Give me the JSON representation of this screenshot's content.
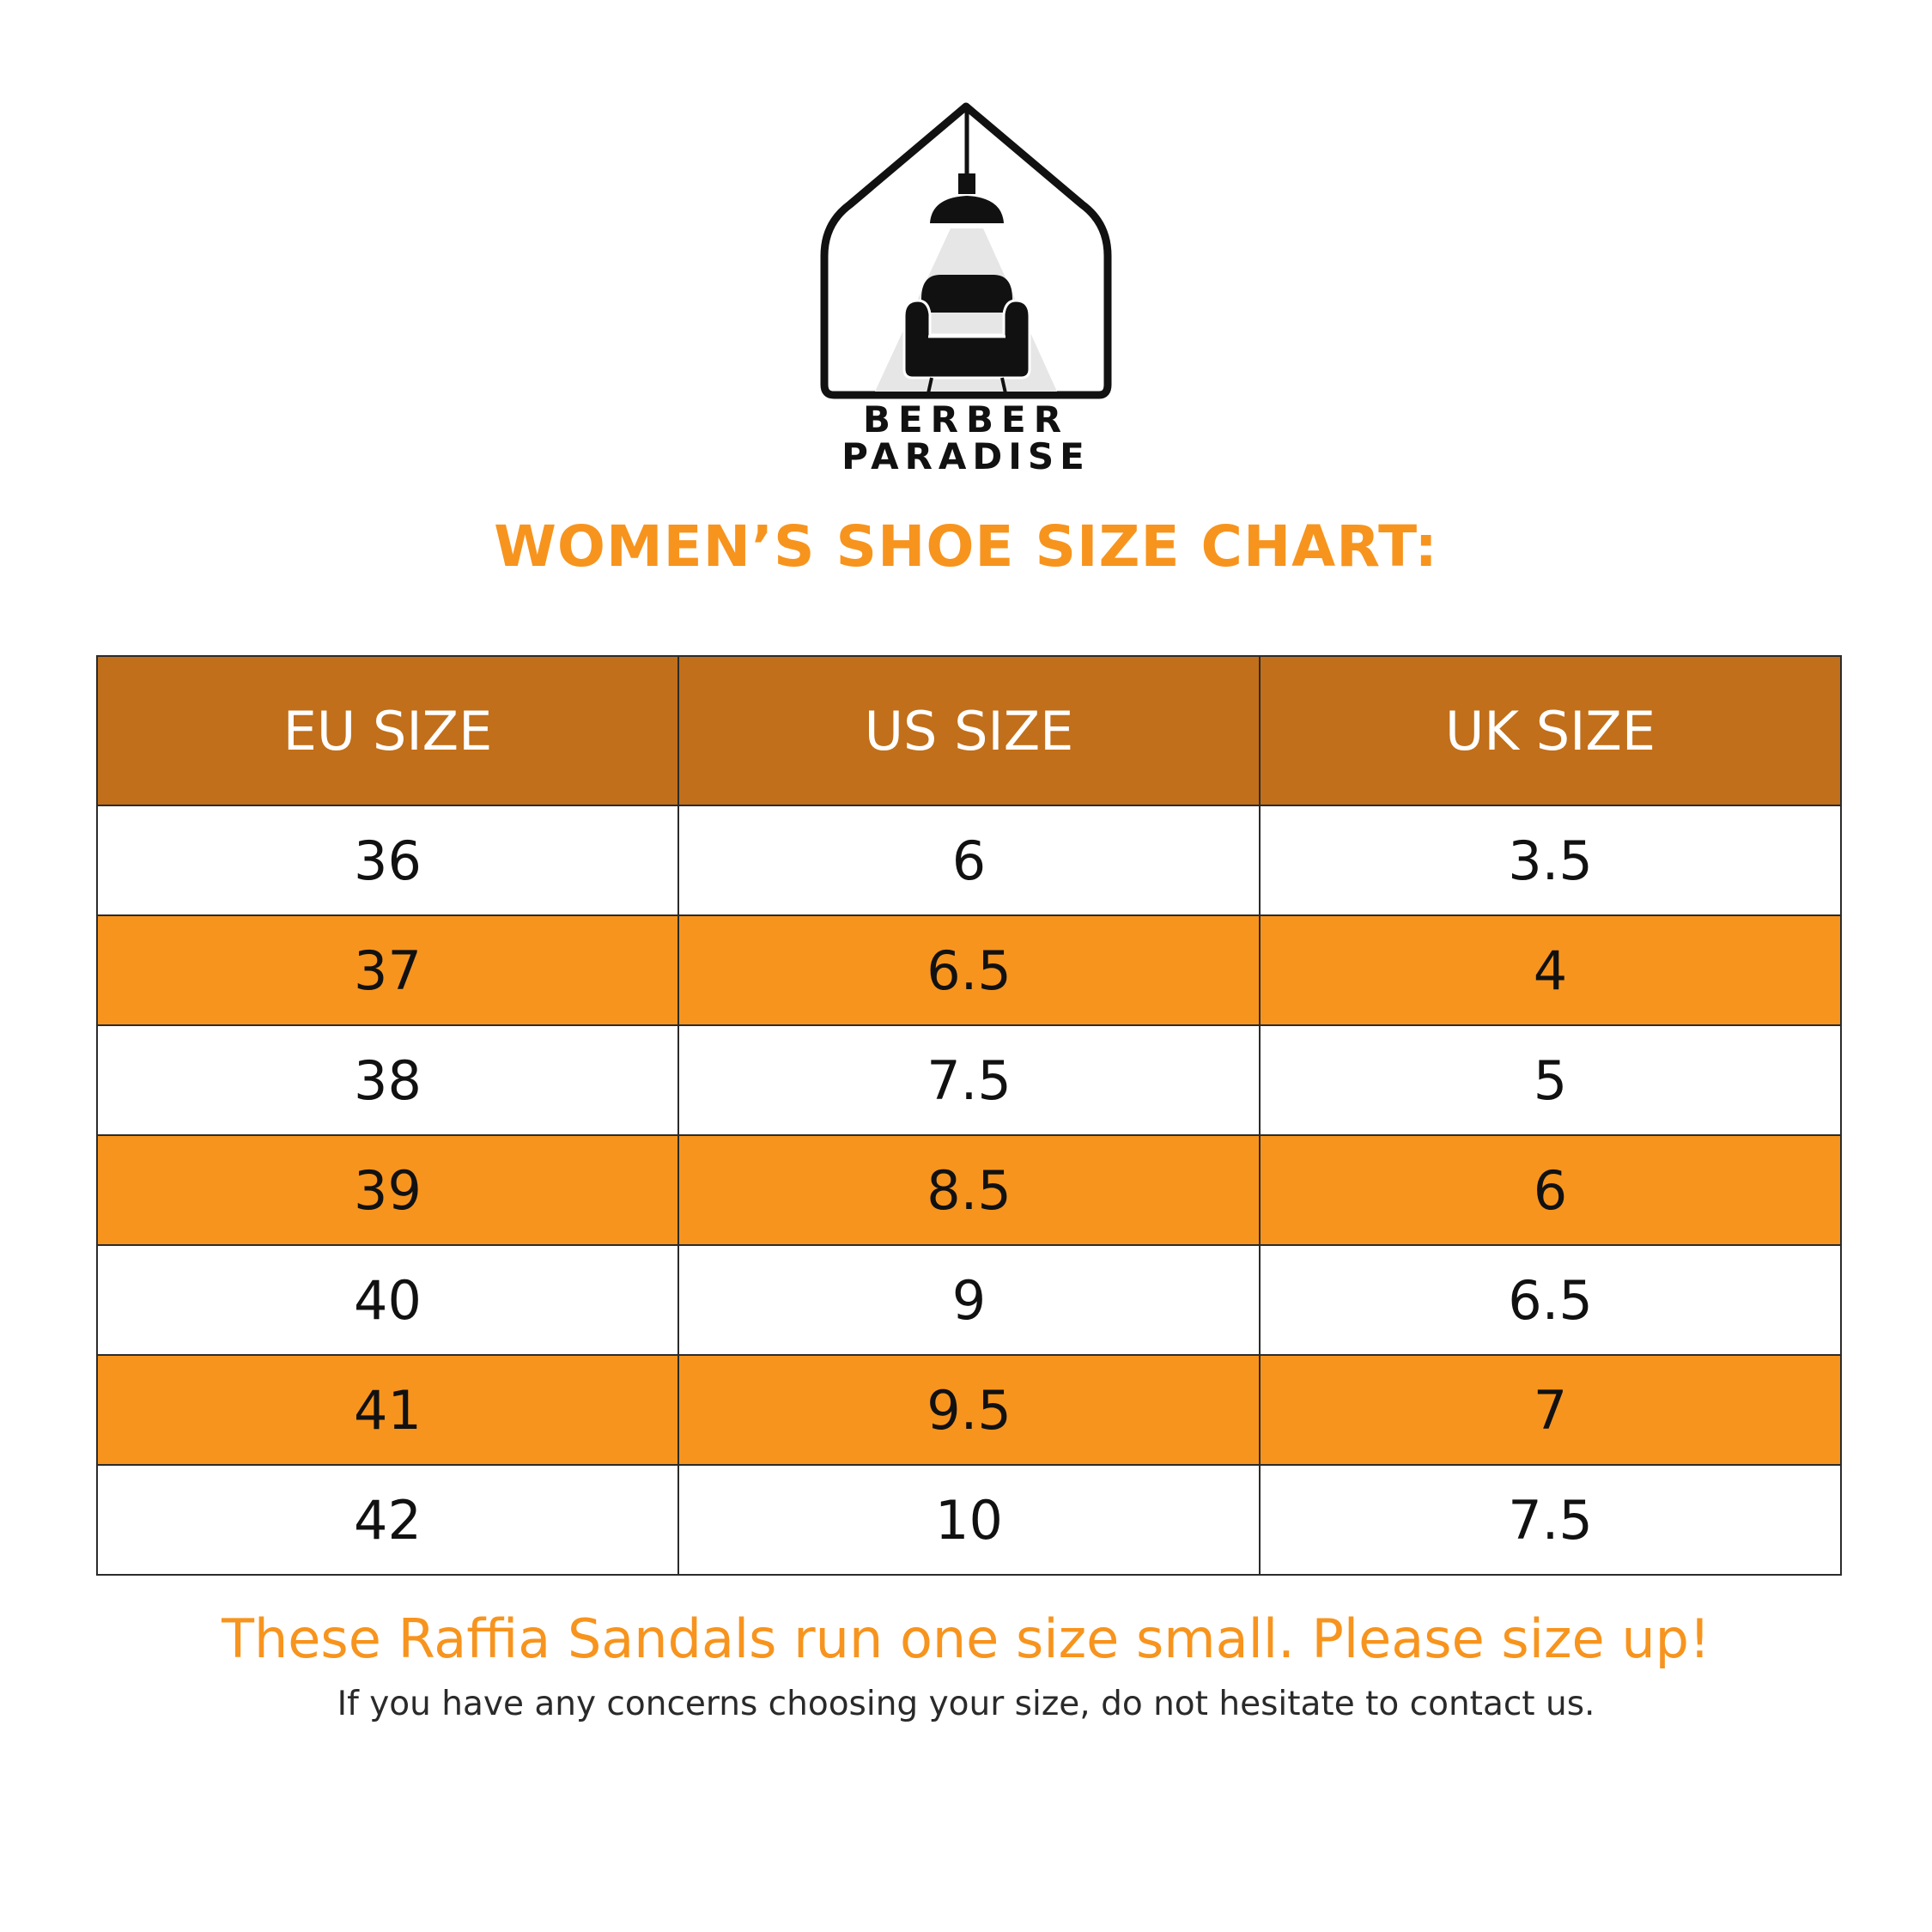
{
  "brand": {
    "line1": "BERBER",
    "line2": "PARADISE"
  },
  "title": "WOMEN’S SHOE SIZE CHART:",
  "table": {
    "headers": [
      "EU SIZE",
      "US SIZE",
      "UK SIZE"
    ],
    "rows": [
      [
        "36",
        "6",
        "3.5"
      ],
      [
        "37",
        "6.5",
        "4"
      ],
      [
        "38",
        "7.5",
        "5"
      ],
      [
        "39",
        "8.5",
        "6"
      ],
      [
        "40",
        "9",
        "6.5"
      ],
      [
        "41",
        "9.5",
        "7"
      ],
      [
        "42",
        "10",
        "7.5"
      ]
    ]
  },
  "notes": {
    "main": "These Raffia Sandals run one size small. Please size up!",
    "sub": "If you have any concerns choosing your size, do not hesitate to contact us."
  },
  "colors": {
    "accent": "#F7941E",
    "header_bg": "#C16F1A",
    "row_alt": "#F7941E",
    "row_plain": "#FFFFFF",
    "text_dark": "#111111"
  }
}
